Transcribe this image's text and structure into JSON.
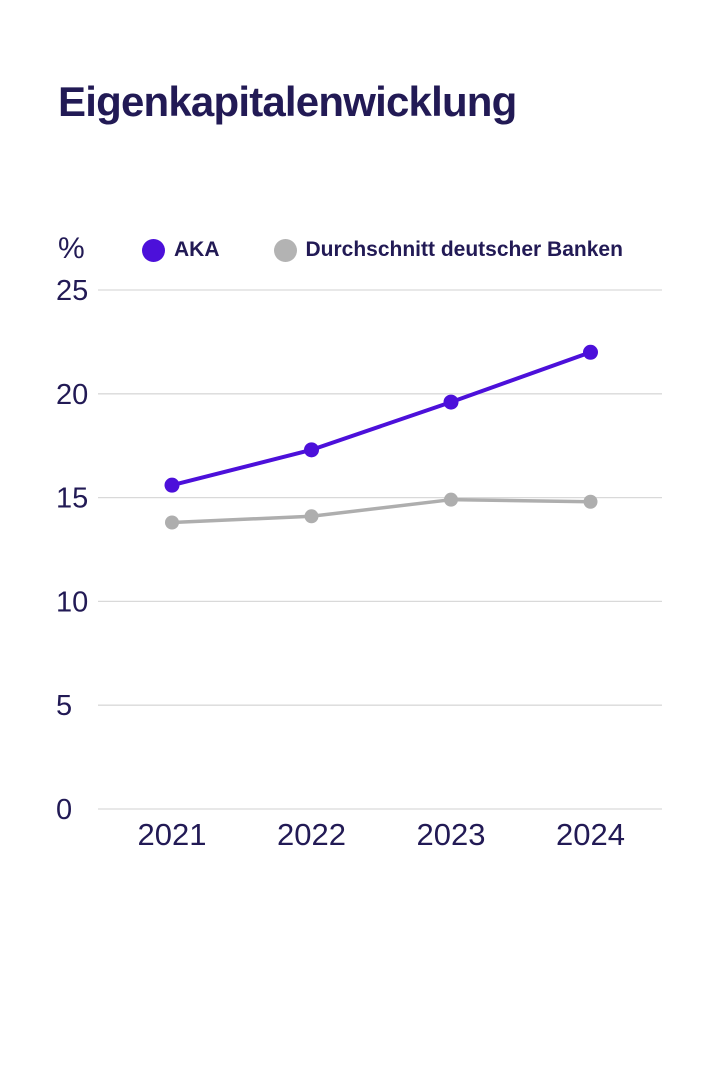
{
  "page": {
    "title": "Eigenkapitalenwicklung"
  },
  "legend": {
    "unit_label": "%"
  },
  "colors": {
    "text_navy": "#221a55",
    "aka_purple": "#4c10da",
    "banken_gray": "#aeaeae",
    "legend_gray": "#b3b3b3",
    "gridline": "#d9d9d9",
    "background": "#ffffff"
  },
  "chart_data": {
    "type": "line",
    "title": "Eigenkapitalenwicklung",
    "unit_label": "%",
    "categories": [
      "2021",
      "2022",
      "2023",
      "2024"
    ],
    "series": [
      {
        "name": "AKA",
        "values": [
          15.6,
          17.3,
          19.6,
          22.0
        ],
        "color": "#4c10da"
      },
      {
        "name": "Durchschnitt deutscher Banken",
        "values": [
          13.8,
          14.1,
          14.9,
          14.8
        ],
        "color": "#aeaeae"
      }
    ],
    "ylim": [
      0,
      25
    ],
    "y_ticks": [
      0,
      5,
      10,
      15,
      20,
      25
    ],
    "grid": true,
    "legend_position": "top",
    "xlabel": "",
    "ylabel": "%"
  }
}
